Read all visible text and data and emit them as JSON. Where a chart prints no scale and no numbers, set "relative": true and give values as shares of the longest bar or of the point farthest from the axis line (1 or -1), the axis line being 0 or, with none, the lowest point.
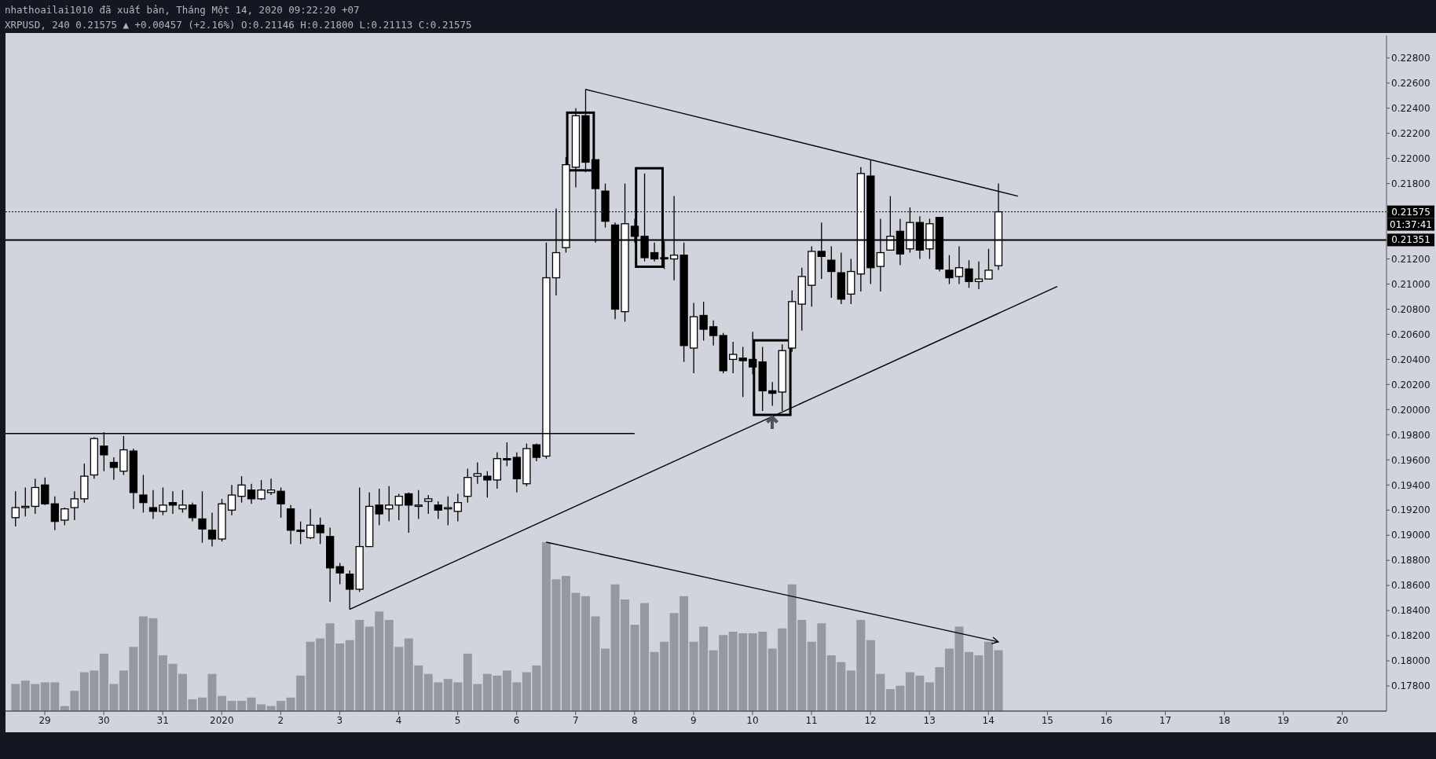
{
  "chart_data": [
    {
      "type": "candlestick",
      "title": "nhathoailai1010 đã xuất bản, Tháng Một 14, 2020 09:22:20 +07",
      "subtitle": "XRPUSD, 240 0.21575 ▲ +0.00457 (+2.16%) O:0.21146 H:0.21800 L:0.21113 C:0.21575",
      "color": "#000000",
      "x": [
        "2019-12-28T12:00",
        "2019-12-28T16:00",
        "2019-12-28T20:00",
        "2019-12-29T00:00",
        "2019-12-29T04:00",
        "2019-12-29T08:00",
        "2019-12-29T12:00",
        "2019-12-29T16:00",
        "2019-12-29T20:00",
        "2019-12-30T00:00",
        "2019-12-30T04:00",
        "2019-12-30T08:00",
        "2019-12-30T12:00",
        "2019-12-30T16:00",
        "2019-12-30T20:00",
        "2019-12-31T00:00",
        "2019-12-31T04:00",
        "2019-12-31T08:00",
        "2019-12-31T12:00",
        "2019-12-31T16:00",
        "2019-12-31T20:00",
        "2020-01-01T00:00",
        "2020-01-01T04:00",
        "2020-01-01T08:00",
        "2020-01-01T12:00",
        "2020-01-01T16:00",
        "2020-01-01T20:00",
        "2020-01-02T00:00",
        "2020-01-02T04:00",
        "2020-01-02T08:00",
        "2020-01-02T12:00",
        "2020-01-02T16:00",
        "2020-01-02T20:00",
        "2020-01-03T00:00",
        "2020-01-03T04:00",
        "2020-01-03T08:00",
        "2020-01-03T12:00",
        "2020-01-03T16:00",
        "2020-01-03T20:00",
        "2020-01-04T00:00",
        "2020-01-04T04:00",
        "2020-01-04T08:00",
        "2020-01-04T12:00",
        "2020-01-04T16:00",
        "2020-01-04T20:00",
        "2020-01-05T00:00",
        "2020-01-05T04:00",
        "2020-01-05T08:00",
        "2020-01-05T12:00",
        "2020-01-05T16:00",
        "2020-01-05T20:00",
        "2020-01-06T00:00",
        "2020-01-06T04:00",
        "2020-01-06T08:00",
        "2020-01-06T12:00",
        "2020-01-06T16:00",
        "2020-01-06T20:00",
        "2020-01-07T00:00",
        "2020-01-07T04:00",
        "2020-01-07T08:00",
        "2020-01-07T12:00",
        "2020-01-07T16:00",
        "2020-01-07T20:00",
        "2020-01-08T00:00",
        "2020-01-08T04:00",
        "2020-01-08T08:00",
        "2020-01-08T12:00",
        "2020-01-08T16:00",
        "2020-01-08T20:00",
        "2020-01-09T00:00",
        "2020-01-09T04:00",
        "2020-01-09T08:00",
        "2020-01-09T12:00",
        "2020-01-09T16:00",
        "2020-01-09T20:00",
        "2020-01-10T00:00",
        "2020-01-10T04:00",
        "2020-01-10T08:00",
        "2020-01-10T12:00",
        "2020-01-10T16:00",
        "2020-01-10T20:00",
        "2020-01-11T00:00",
        "2020-01-11T04:00",
        "2020-01-11T08:00",
        "2020-01-11T12:00",
        "2020-01-11T16:00",
        "2020-01-11T20:00",
        "2020-01-12T00:00",
        "2020-01-12T04:00",
        "2020-01-12T08:00",
        "2020-01-12T12:00",
        "2020-01-12T16:00",
        "2020-01-12T20:00",
        "2020-01-13T00:00",
        "2020-01-13T04:00",
        "2020-01-13T08:00",
        "2020-01-13T12:00",
        "2020-01-13T16:00",
        "2020-01-13T20:00",
        "2020-01-14T00:00",
        "2020-01-14T04:00"
      ],
      "ohlc": [
        [
          0.1914,
          0.1935,
          0.1907,
          0.1922
        ],
        [
          0.1922,
          0.1938,
          0.1915,
          0.1923
        ],
        [
          0.1923,
          0.1945,
          0.1917,
          0.1938
        ],
        [
          0.194,
          0.1946,
          0.1924,
          0.1925
        ],
        [
          0.1925,
          0.1931,
          0.1904,
          0.1911
        ],
        [
          0.1912,
          0.1922,
          0.1908,
          0.1921
        ],
        [
          0.1922,
          0.1935,
          0.1912,
          0.1929
        ],
        [
          0.1929,
          0.1957,
          0.1926,
          0.1947
        ],
        [
          0.1948,
          0.1978,
          0.1945,
          0.1977
        ],
        [
          0.1971,
          0.1982,
          0.1951,
          0.1964
        ],
        [
          0.1958,
          0.1962,
          0.1944,
          0.1954
        ],
        [
          0.1951,
          0.1979,
          0.1948,
          0.1968
        ],
        [
          0.1967,
          0.1969,
          0.1921,
          0.1934
        ],
        [
          0.1932,
          0.1948,
          0.1918,
          0.1926
        ],
        [
          0.1922,
          0.1936,
          0.1913,
          0.1919
        ],
        [
          0.1919,
          0.1938,
          0.1916,
          0.1924
        ],
        [
          0.1926,
          0.1935,
          0.1917,
          0.1924
        ],
        [
          0.1921,
          0.1936,
          0.1918,
          0.1924
        ],
        [
          0.1924,
          0.1926,
          0.1911,
          0.1914
        ],
        [
          0.1913,
          0.1935,
          0.1894,
          0.1905
        ],
        [
          0.1904,
          0.1918,
          0.1891,
          0.1897
        ],
        [
          0.1897,
          0.1929,
          0.1895,
          0.1925
        ],
        [
          0.192,
          0.194,
          0.1916,
          0.1932
        ],
        [
          0.1931,
          0.1947,
          0.1926,
          0.194
        ],
        [
          0.1936,
          0.1941,
          0.1925,
          0.1929
        ],
        [
          0.1929,
          0.1944,
          0.1928,
          0.1936
        ],
        [
          0.1934,
          0.1945,
          0.1932,
          0.1936
        ],
        [
          0.1935,
          0.1938,
          0.1914,
          0.1925
        ],
        [
          0.1921,
          0.1924,
          0.1893,
          0.1904
        ],
        [
          0.1904,
          0.1911,
          0.1893,
          0.1903
        ],
        [
          0.1898,
          0.1921,
          0.1897,
          0.1908
        ],
        [
          0.1908,
          0.1914,
          0.1893,
          0.1902
        ],
        [
          0.1899,
          0.1906,
          0.1847,
          0.1874
        ],
        [
          0.1875,
          0.1878,
          0.1861,
          0.187
        ],
        [
          0.1869,
          0.1872,
          0.1841,
          0.1857
        ],
        [
          0.1857,
          0.1938,
          0.1855,
          0.1891
        ],
        [
          0.1891,
          0.1934,
          0.1891,
          0.1923
        ],
        [
          0.1924,
          0.1937,
          0.1908,
          0.1917
        ],
        [
          0.1921,
          0.1939,
          0.1911,
          0.1924
        ],
        [
          0.1924,
          0.1933,
          0.1912,
          0.1931
        ],
        [
          0.1933,
          0.1934,
          0.1902,
          0.1924
        ],
        [
          0.1923,
          0.1936,
          0.1913,
          0.1924
        ],
        [
          0.1927,
          0.1932,
          0.1917,
          0.1929
        ],
        [
          0.1924,
          0.1927,
          0.1913,
          0.192
        ],
        [
          0.1921,
          0.1931,
          0.1908,
          0.1922
        ],
        [
          0.1919,
          0.1933,
          0.1911,
          0.1926
        ],
        [
          0.1931,
          0.1953,
          0.1926,
          0.1946
        ],
        [
          0.1947,
          0.1958,
          0.1941,
          0.1949
        ],
        [
          0.1947,
          0.1951,
          0.193,
          0.1944
        ],
        [
          0.1944,
          0.1966,
          0.1937,
          0.1961
        ],
        [
          0.1961,
          0.1974,
          0.1955,
          0.196
        ],
        [
          0.1962,
          0.1966,
          0.1934,
          0.1945
        ],
        [
          0.1941,
          0.1973,
          0.1939,
          0.1969
        ],
        [
          0.1972,
          0.1973,
          0.1959,
          0.1962
        ],
        [
          0.1963,
          0.2133,
          0.1961,
          0.2105
        ],
        [
          0.2105,
          0.216,
          0.2091,
          0.2125
        ],
        [
          0.2129,
          0.2201,
          0.2125,
          0.2195
        ],
        [
          0.2193,
          0.224,
          0.2177,
          0.2234
        ],
        [
          0.2234,
          0.2255,
          0.2189,
          0.2197
        ],
        [
          0.2199,
          0.2199,
          0.2133,
          0.2176
        ],
        [
          0.2174,
          0.218,
          0.2145,
          0.215
        ],
        [
          0.2147,
          0.2149,
          0.2072,
          0.208
        ],
        [
          0.2078,
          0.218,
          0.207,
          0.2148
        ],
        [
          0.2146,
          0.2152,
          0.2133,
          0.2138
        ],
        [
          0.2138,
          0.2188,
          0.2118,
          0.2121
        ],
        [
          0.2125,
          0.2133,
          0.2118,
          0.212
        ],
        [
          0.2121,
          0.2134,
          0.2112,
          0.212
        ],
        [
          0.212,
          0.217,
          0.2103,
          0.2123
        ],
        [
          0.2123,
          0.2133,
          0.2038,
          0.2051
        ],
        [
          0.2049,
          0.2085,
          0.2029,
          0.2074
        ],
        [
          0.2075,
          0.2086,
          0.2055,
          0.2064
        ],
        [
          0.2066,
          0.2071,
          0.2051,
          0.2059
        ],
        [
          0.2059,
          0.2061,
          0.2029,
          0.2031
        ],
        [
          0.204,
          0.2054,
          0.2029,
          0.2044
        ],
        [
          0.2041,
          0.205,
          0.201,
          0.2039
        ],
        [
          0.204,
          0.2062,
          0.2028,
          0.2034
        ],
        [
          0.2038,
          0.205,
          0.1999,
          0.2015
        ],
        [
          0.2015,
          0.2022,
          0.2003,
          0.2013
        ],
        [
          0.2014,
          0.2052,
          0.1999,
          0.2047
        ],
        [
          0.2049,
          0.2095,
          0.2046,
          0.2086
        ],
        [
          0.2084,
          0.2113,
          0.2063,
          0.2106
        ],
        [
          0.2099,
          0.213,
          0.2082,
          0.2126
        ],
        [
          0.2126,
          0.2149,
          0.2104,
          0.2122
        ],
        [
          0.2119,
          0.213,
          0.2089,
          0.211
        ],
        [
          0.2109,
          0.2125,
          0.2084,
          0.2088
        ],
        [
          0.2092,
          0.212,
          0.2084,
          0.211
        ],
        [
          0.2108,
          0.2193,
          0.2094,
          0.2188
        ],
        [
          0.2186,
          0.2199,
          0.21,
          0.2113
        ],
        [
          0.2114,
          0.2152,
          0.2094,
          0.2125
        ],
        [
          0.2127,
          0.217,
          0.2127,
          0.2138
        ],
        [
          0.2142,
          0.2152,
          0.2115,
          0.2124
        ],
        [
          0.2128,
          0.2161,
          0.2125,
          0.2149
        ],
        [
          0.2149,
          0.2154,
          0.212,
          0.2127
        ],
        [
          0.2128,
          0.2152,
          0.212,
          0.2148
        ],
        [
          0.2153,
          0.2153,
          0.211,
          0.2112
        ],
        [
          0.2111,
          0.2123,
          0.21,
          0.2105
        ],
        [
          0.2106,
          0.213,
          0.21,
          0.2113
        ],
        [
          0.2112,
          0.2119,
          0.2097,
          0.2102
        ],
        [
          0.2102,
          0.2118,
          0.2096,
          0.2104
        ],
        [
          0.2104,
          0.2128,
          0.2104,
          0.2111
        ],
        [
          0.21146,
          0.218,
          0.21113,
          0.21575
        ]
      ],
      "series": [
        {
          "type": "line",
          "color": "#000000",
          "x": [
            "2020-01-07T04:00",
            "2020-01-14T12:00"
          ],
          "values": [
            0.2255,
            0.217
          ]
        },
        {
          "type": "line",
          "color": "#000000",
          "x": [
            "2020-01-03T04:00",
            "2020-01-15T04:00"
          ],
          "values": [
            0.1841,
            0.2098
          ]
        },
        {
          "type": "line",
          "color": "#000000",
          "x": [
            "2019-12-28T08:00",
            "2020-01-08T00:00"
          ],
          "values": [
            0.1981,
            0.1981
          ]
        }
      ],
      "ref_lines": [
        {
          "axis": "y",
          "value": 0.21351,
          "label": "0.21351",
          "color": "#000000",
          "line_style": "solid"
        },
        {
          "axis": "y",
          "value": 0.21575,
          "label": "0.21575",
          "color": "#000000",
          "line_style": "dotted"
        }
      ],
      "annotations": [
        "01:37:41"
      ],
      "xlim": [
        "2019-12-28T08:00",
        "2020-01-20T18:00"
      ],
      "xticks": [
        {
          "value": "2019-12-29",
          "label": "29"
        },
        {
          "value": "2019-12-30",
          "label": "30"
        },
        {
          "value": "2019-12-31",
          "label": "31"
        },
        {
          "value": "2020-01-01",
          "label": "2020"
        },
        {
          "value": "2020-01-02",
          "label": "2"
        },
        {
          "value": "2020-01-03",
          "label": "3"
        },
        {
          "value": "2020-01-04",
          "label": "4"
        },
        {
          "value": "2020-01-05",
          "label": "5"
        },
        {
          "value": "2020-01-06",
          "label": "6"
        },
        {
          "value": "2020-01-07",
          "label": "7"
        },
        {
          "value": "2020-01-08",
          "label": "8"
        },
        {
          "value": "2020-01-09",
          "label": "9"
        },
        {
          "value": "2020-01-10",
          "label": "10"
        },
        {
          "value": "2020-01-11",
          "label": "11"
        },
        {
          "value": "2020-01-12",
          "label": "12"
        },
        {
          "value": "2020-01-13",
          "label": "13"
        },
        {
          "value": "2020-01-14",
          "label": "14"
        },
        {
          "value": "2020-01-15",
          "label": "15"
        },
        {
          "value": "2020-01-16",
          "label": "16"
        },
        {
          "value": "2020-01-17",
          "label": "17"
        },
        {
          "value": "2020-01-18",
          "label": "18"
        },
        {
          "value": "2020-01-19",
          "label": "19"
        },
        {
          "value": "2020-01-20",
          "label": "20"
        }
      ],
      "ylim": [
        0.176,
        0.2298
      ],
      "yticks": [
        {
          "value": 0.178,
          "label": "0.17800"
        },
        {
          "value": 0.18,
          "label": "0.18000"
        },
        {
          "value": 0.182,
          "label": "0.18200"
        },
        {
          "value": 0.184,
          "label": "0.18400"
        },
        {
          "value": 0.186,
          "label": "0.18600"
        },
        {
          "value": 0.188,
          "label": "0.18800"
        },
        {
          "value": 0.19,
          "label": "0.19000"
        },
        {
          "value": 0.192,
          "label": "0.19200"
        },
        {
          "value": 0.194,
          "label": "0.19400"
        },
        {
          "value": 0.196,
          "label": "0.19600"
        },
        {
          "value": 0.198,
          "label": "0.19800"
        },
        {
          "value": 0.2,
          "label": "0.20000"
        },
        {
          "value": 0.202,
          "label": "0.20200"
        },
        {
          "value": 0.204,
          "label": "0.20400"
        },
        {
          "value": 0.206,
          "label": "0.20600"
        },
        {
          "value": 0.208,
          "label": "0.20800"
        },
        {
          "value": 0.21,
          "label": "0.21000"
        },
        {
          "value": 0.212,
          "label": "0.21200"
        },
        {
          "value": 0.218,
          "label": "0.21800"
        },
        {
          "value": 0.22,
          "label": "0.22000"
        },
        {
          "value": 0.222,
          "label": "0.22200"
        },
        {
          "value": 0.224,
          "label": "0.22400"
        },
        {
          "value": 0.226,
          "label": "0.22600"
        },
        {
          "value": 0.228,
          "label": "0.22800"
        }
      ]
    },
    {
      "type": "bar",
      "relative": true,
      "color": "#9598a1",
      "tick_labels": false,
      "x": [
        "2019-12-28T12:00",
        "2019-12-28T16:00",
        "2019-12-28T20:00",
        "2019-12-29T00:00",
        "2019-12-29T04:00",
        "2019-12-29T08:00",
        "2019-12-29T12:00",
        "2019-12-29T16:00",
        "2019-12-29T20:00",
        "2019-12-30T00:00",
        "2019-12-30T04:00",
        "2019-12-30T08:00",
        "2019-12-30T12:00",
        "2019-12-30T16:00",
        "2019-12-30T20:00",
        "2019-12-31T00:00",
        "2019-12-31T04:00",
        "2019-12-31T08:00",
        "2019-12-31T12:00",
        "2019-12-31T16:00",
        "2019-12-31T20:00",
        "2020-01-01T00:00",
        "2020-01-01T04:00",
        "2020-01-01T08:00",
        "2020-01-01T12:00",
        "2020-01-01T16:00",
        "2020-01-01T20:00",
        "2020-01-02T00:00",
        "2020-01-02T04:00",
        "2020-01-02T08:00",
        "2020-01-02T12:00",
        "2020-01-02T16:00",
        "2020-01-02T20:00",
        "2020-01-03T00:00",
        "2020-01-03T04:00",
        "2020-01-03T08:00",
        "2020-01-03T12:00",
        "2020-01-03T16:00",
        "2020-01-03T20:00",
        "2020-01-04T00:00",
        "2020-01-04T04:00",
        "2020-01-04T08:00",
        "2020-01-04T12:00",
        "2020-01-04T16:00",
        "2020-01-04T20:00",
        "2020-01-05T00:00",
        "2020-01-05T04:00",
        "2020-01-05T08:00",
        "2020-01-05T12:00",
        "2020-01-05T16:00",
        "2020-01-05T20:00",
        "2020-01-06T00:00",
        "2020-01-06T04:00",
        "2020-01-06T08:00",
        "2020-01-06T12:00",
        "2020-01-06T16:00",
        "2020-01-06T20:00",
        "2020-01-07T00:00",
        "2020-01-07T04:00",
        "2020-01-07T08:00",
        "2020-01-07T12:00",
        "2020-01-07T16:00",
        "2020-01-07T20:00",
        "2020-01-08T00:00",
        "2020-01-08T04:00",
        "2020-01-08T08:00",
        "2020-01-08T12:00",
        "2020-01-08T16:00",
        "2020-01-08T20:00",
        "2020-01-09T00:00",
        "2020-01-09T04:00",
        "2020-01-09T08:00",
        "2020-01-09T12:00",
        "2020-01-09T16:00",
        "2020-01-09T20:00",
        "2020-01-10T00:00",
        "2020-01-10T04:00",
        "2020-01-10T08:00",
        "2020-01-10T12:00",
        "2020-01-10T16:00",
        "2020-01-10T20:00",
        "2020-01-11T00:00",
        "2020-01-11T04:00",
        "2020-01-11T08:00",
        "2020-01-11T12:00",
        "2020-01-11T16:00",
        "2020-01-11T20:00",
        "2020-01-12T00:00",
        "2020-01-12T04:00",
        "2020-01-12T08:00",
        "2020-01-12T12:00",
        "2020-01-12T16:00",
        "2020-01-12T20:00",
        "2020-01-13T00:00",
        "2020-01-13T04:00",
        "2020-01-13T08:00",
        "2020-01-13T12:00",
        "2020-01-13T16:00",
        "2020-01-13T20:00",
        "2020-01-14T00:00",
        "2020-01-14T04:00"
      ],
      "values": [
        0.16,
        0.18,
        0.16,
        0.17,
        0.17,
        0.03,
        0.12,
        0.23,
        0.24,
        0.34,
        0.16,
        0.24,
        0.38,
        0.56,
        0.55,
        0.33,
        0.28,
        0.22,
        0.07,
        0.08,
        0.22,
        0.09,
        0.06,
        0.06,
        0.08,
        0.04,
        0.03,
        0.06,
        0.08,
        0.21,
        0.41,
        0.43,
        0.52,
        0.4,
        0.42,
        0.54,
        0.5,
        0.59,
        0.54,
        0.38,
        0.43,
        0.27,
        0.22,
        0.17,
        0.19,
        0.17,
        0.34,
        0.16,
        0.22,
        0.21,
        0.24,
        0.17,
        0.23,
        0.27,
        1,
        0.78,
        0.8,
        0.7,
        0.68,
        0.56,
        0.37,
        0.75,
        0.66,
        0.51,
        0.64,
        0.35,
        0.41,
        0.58,
        0.68,
        0.41,
        0.5,
        0.36,
        0.45,
        0.47,
        0.46,
        0.46,
        0.47,
        0.37,
        0.49,
        0.75,
        0.54,
        0.41,
        0.52,
        0.33,
        0.29,
        0.24,
        0.54,
        0.42,
        0.22,
        0.13,
        0.15,
        0.23,
        0.21,
        0.17,
        0.26,
        0.37,
        0.5,
        0.35,
        0.33,
        0.41,
        0.36
      ],
      "xlim": [
        "2019-12-28T08:00",
        "2020-01-20T18:00"
      ]
    }
  ]
}
